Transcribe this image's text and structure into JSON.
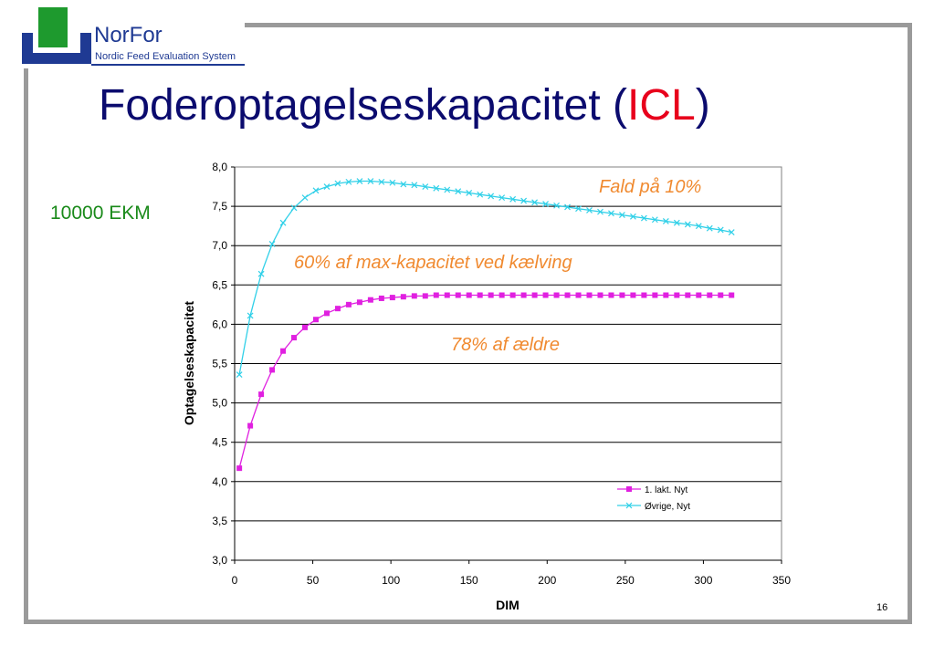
{
  "logo": {
    "name": "NorFor",
    "subtitle": "Nordic Feed Evaluation System",
    "color_blue": "#1f3a93",
    "color_green": "#1e9a2e"
  },
  "title": {
    "main": "Foderoptagelseskapacitet (",
    "accent": "ICL",
    "close": ")",
    "color": "#0b0b6e",
    "accent_color": "#e8001c"
  },
  "side_label": "10000 EKM",
  "slide_number": "16",
  "chart_data": {
    "type": "line",
    "xlabel": "DIM",
    "ylabel": "Optagelseskapacitet",
    "xlim": [
      0,
      350
    ],
    "ylim": [
      3.0,
      8.0
    ],
    "x_ticks": [
      "0",
      "50",
      "100",
      "150",
      "200",
      "250",
      "300",
      "350"
    ],
    "y_ticks": [
      "3,0",
      "3,5",
      "4,0",
      "4,5",
      "5,0",
      "5,5",
      "6,0",
      "6,5",
      "7,0",
      "7,5",
      "8,0"
    ],
    "grid": "horizontal",
    "legend_placement": "bottom-right",
    "annotations": [
      "Fald på 10%",
      "60% af max-kapacitet ved kælving",
      "78% af ældre"
    ],
    "annotation_color": "#f08a30",
    "series": [
      {
        "name": "1. lakt. Nyt",
        "color": "#e020e0",
        "marker": "square",
        "x": [
          3,
          10,
          17,
          24,
          31,
          38,
          45,
          52,
          59,
          66,
          73,
          80,
          87,
          94,
          101,
          108,
          115,
          122,
          129,
          136,
          143,
          150,
          157,
          164,
          171,
          178,
          185,
          192,
          199,
          206,
          213,
          220,
          227,
          234,
          241,
          248,
          255,
          262,
          269,
          276,
          283,
          290,
          297,
          304,
          311,
          318
        ],
        "values": [
          4.17,
          4.71,
          5.11,
          5.42,
          5.66,
          5.83,
          5.96,
          6.06,
          6.14,
          6.2,
          6.25,
          6.28,
          6.31,
          6.33,
          6.34,
          6.35,
          6.36,
          6.36,
          6.37,
          6.37,
          6.37,
          6.37,
          6.37,
          6.37,
          6.37,
          6.37,
          6.37,
          6.37,
          6.37,
          6.37,
          6.37,
          6.37,
          6.37,
          6.37,
          6.37,
          6.37,
          6.37,
          6.37,
          6.37,
          6.37,
          6.37,
          6.37,
          6.37,
          6.37,
          6.37,
          6.37
        ]
      },
      {
        "name": "Øvrige, Nyt",
        "color": "#30d0e8",
        "marker": "x",
        "x": [
          3,
          10,
          17,
          24,
          31,
          38,
          45,
          52,
          59,
          66,
          73,
          80,
          87,
          94,
          101,
          108,
          115,
          122,
          129,
          136,
          143,
          150,
          157,
          164,
          171,
          178,
          185,
          192,
          199,
          206,
          213,
          220,
          227,
          234,
          241,
          248,
          255,
          262,
          269,
          276,
          283,
          290,
          297,
          304,
          311,
          318
        ],
        "values": [
          5.36,
          6.11,
          6.64,
          7.02,
          7.29,
          7.48,
          7.61,
          7.7,
          7.75,
          7.79,
          7.81,
          7.82,
          7.82,
          7.81,
          7.8,
          7.78,
          7.77,
          7.75,
          7.73,
          7.71,
          7.69,
          7.67,
          7.65,
          7.63,
          7.61,
          7.59,
          7.57,
          7.55,
          7.53,
          7.51,
          7.49,
          7.47,
          7.45,
          7.43,
          7.41,
          7.39,
          7.37,
          7.35,
          7.33,
          7.31,
          7.29,
          7.27,
          7.25,
          7.22,
          7.2,
          7.17
        ]
      }
    ]
  }
}
